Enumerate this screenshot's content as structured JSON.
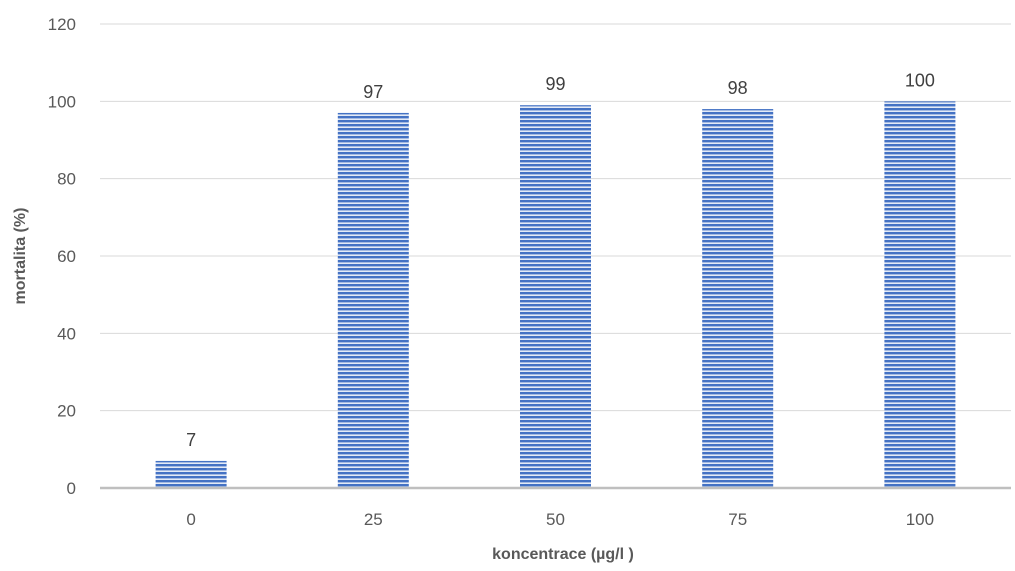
{
  "chart_data": {
    "type": "bar",
    "categories": [
      "0",
      "25",
      "50",
      "75",
      "100"
    ],
    "values": [
      7,
      97,
      99,
      98,
      100
    ],
    "data_labels": [
      "7",
      "97",
      "99",
      "98",
      "100"
    ],
    "xlabel": "koncentrace (µg/l )",
    "ylabel": "mortalita (%)",
    "ylim": [
      0,
      120
    ],
    "yticks": [
      0,
      20,
      40,
      60,
      80,
      100,
      120
    ],
    "grid": true,
    "legend": "none",
    "bar_color": "#4472c4",
    "bar_stripe_color": "#ffffff",
    "gridline_color": "#d9d9d9",
    "axis_color": "#bfbfbf"
  }
}
